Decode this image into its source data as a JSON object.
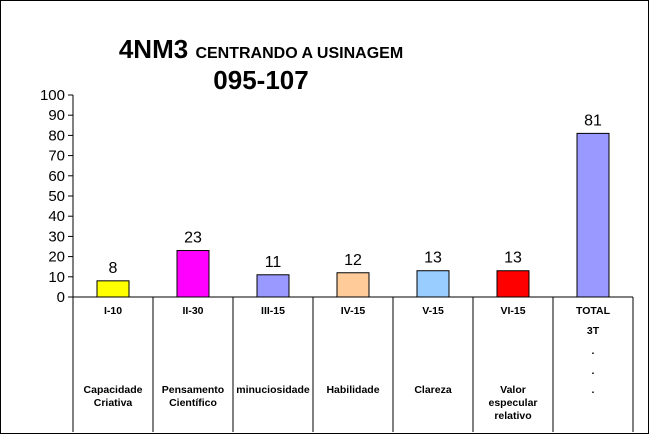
{
  "title": {
    "code": "4NM3",
    "subtitle": "CENTRANDO A USINAGEM",
    "range": "095-107"
  },
  "chart_data": {
    "type": "bar",
    "ylim": [
      0,
      100
    ],
    "yticks": [
      0,
      10,
      20,
      30,
      40,
      50,
      60,
      70,
      80,
      90,
      100
    ],
    "grid": false,
    "legend": "none",
    "categories": [
      "I-10",
      "II-30",
      "III-15",
      "IV-15",
      "V-15",
      "VI-15",
      "TOTAL"
    ],
    "values": [
      8,
      23,
      11,
      12,
      13,
      13,
      81
    ],
    "data_labels": [
      "8",
      "23",
      "11",
      "12",
      "13",
      "13",
      "81"
    ],
    "colors": [
      "#ffff00",
      "#ff00ff",
      "#9999ff",
      "#ffcc99",
      "#99ccff",
      "#ff0000",
      "#9999ff"
    ],
    "table_rows": [
      [
        "I-10",
        "II-30",
        "III-15",
        "IV-15",
        "V-15",
        "VI-15",
        "TOTAL"
      ],
      [
        "",
        "",
        "",
        "",
        "",
        "",
        "3T"
      ],
      [
        "",
        "",
        "",
        "",
        "",
        "",
        "."
      ],
      [
        "",
        "",
        "",
        "",
        "",
        "",
        "."
      ],
      [
        "Capacidade Criativa",
        "Pensamento Científico",
        "minuciosidade",
        "Habilidade",
        "Clareza",
        "Valor especular relativo",
        "."
      ]
    ]
  }
}
